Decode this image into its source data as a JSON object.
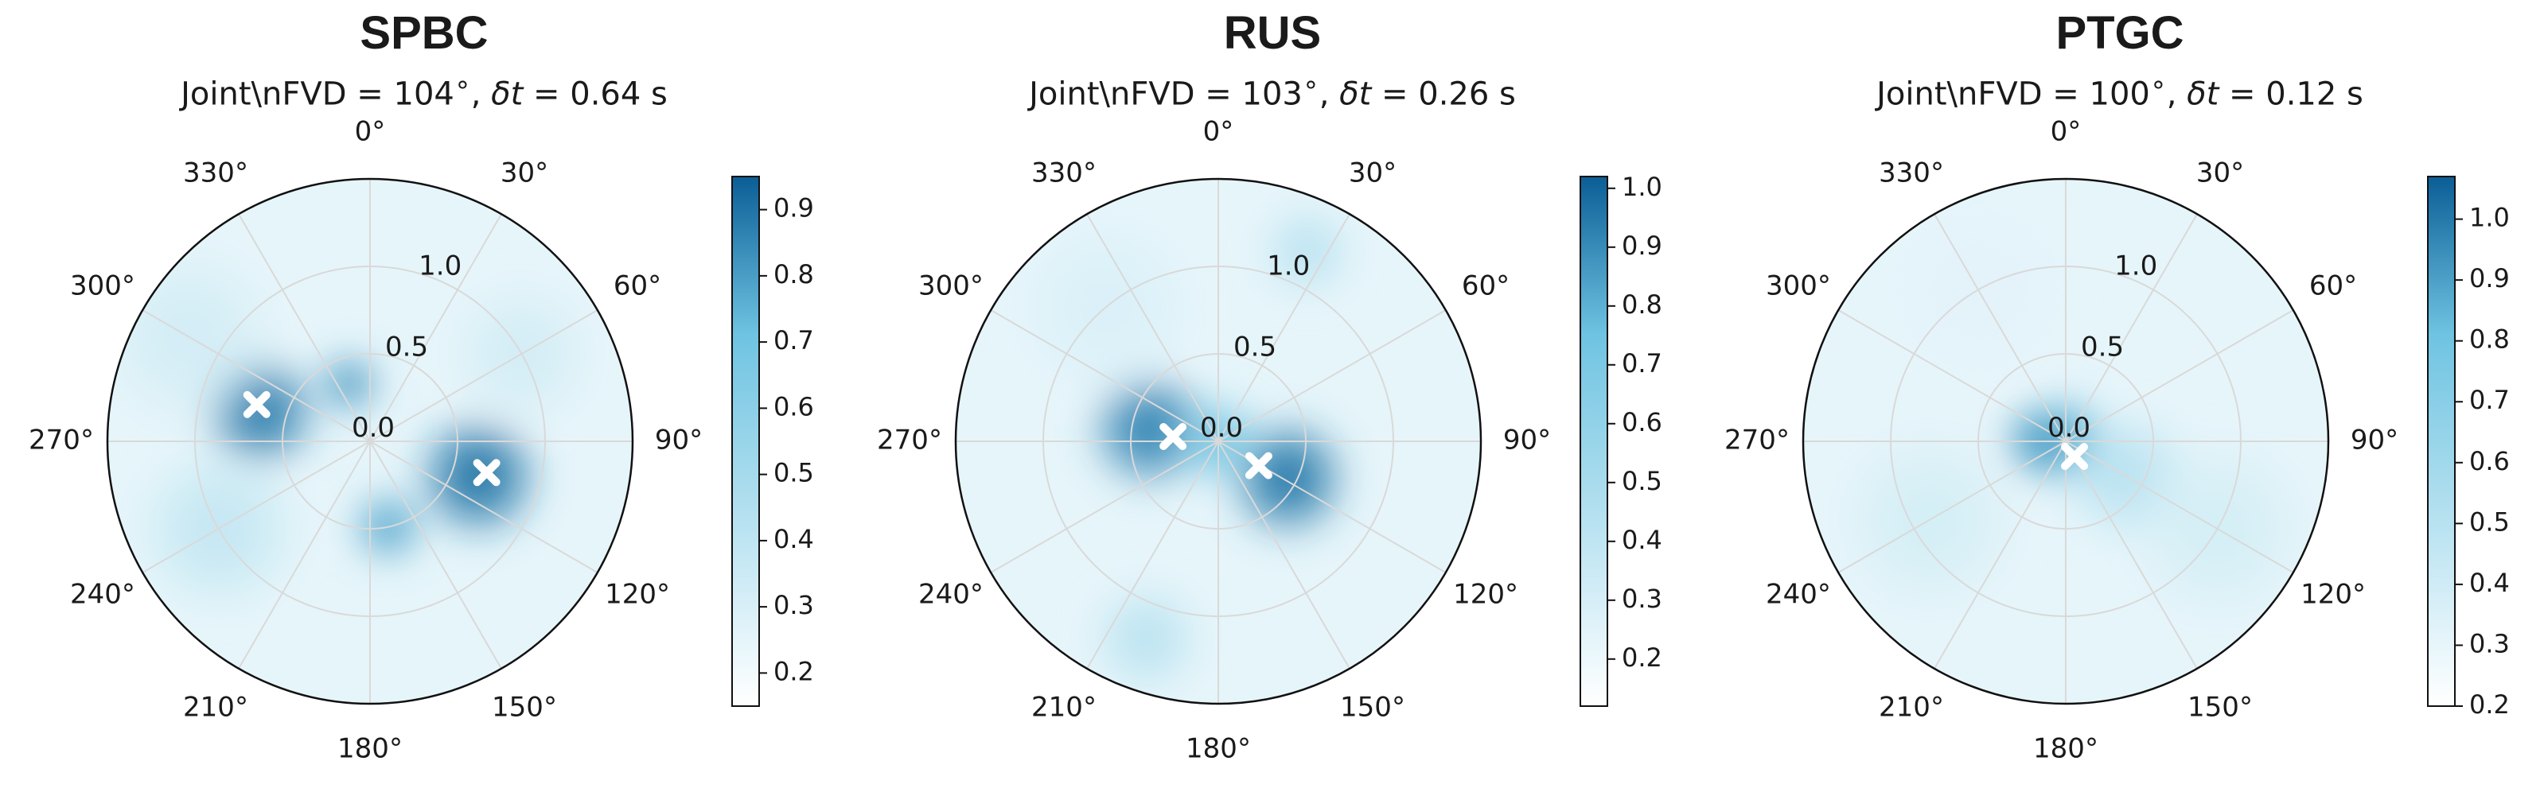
{
  "chart_data": [
    {
      "type": "heatmap",
      "subtype": "polar",
      "title": "SPBC",
      "subtitle": {
        "prefix": "Joint\\nFVD = 104",
        "deg": "∘",
        "mid": ", ",
        "var": "δt",
        "suffix": " = 0.64 s"
      },
      "angle_ticks": [
        "0°",
        "30°",
        "60°",
        "90°",
        "120°",
        "150°",
        "180°",
        "210°",
        "240°",
        "270°",
        "300°",
        "330°"
      ],
      "radial_ticks": [
        "0.0",
        "0.5",
        "1.0"
      ],
      "rlim": [
        0,
        1.5
      ],
      "grid": true,
      "colorbar": {
        "ticks": [
          "0.2",
          "0.3",
          "0.4",
          "0.5",
          "0.6",
          "0.7",
          "0.8",
          "0.9"
        ],
        "range": [
          0.15,
          0.95
        ]
      },
      "colormap": {
        "low": "#ffffff",
        "high": "#0b5e96"
      },
      "markers": [
        {
          "theta": 288,
          "r": 0.68
        },
        {
          "theta": 105,
          "r": 0.69
        }
      ],
      "blobs": [
        {
          "theta": 285,
          "r": 0.65,
          "spread": 0.32,
          "v": 0.88
        },
        {
          "theta": 108,
          "r": 0.65,
          "spread": 0.34,
          "v": 0.9
        },
        {
          "theta": 340,
          "r": 0.35,
          "spread": 0.17,
          "v": 0.82
        },
        {
          "theta": 168,
          "r": 0.5,
          "spread": 0.2,
          "v": 0.78
        },
        {
          "theta": 60,
          "r": 1.0,
          "spread": 0.4,
          "v": 0.32
        },
        {
          "theta": 240,
          "r": 1.0,
          "spread": 0.45,
          "v": 0.38
        },
        {
          "theta": 300,
          "r": 1.2,
          "spread": 0.5,
          "v": 0.32
        }
      ]
    },
    {
      "type": "heatmap",
      "subtype": "polar",
      "title": "RUS",
      "subtitle": {
        "prefix": "Joint\\nFVD = 103",
        "deg": "∘",
        "mid": ", ",
        "var": "δt",
        "suffix": " = 0.26 s"
      },
      "angle_ticks": [
        "0°",
        "30°",
        "60°",
        "90°",
        "120°",
        "150°",
        "180°",
        "210°",
        "240°",
        "270°",
        "300°",
        "330°"
      ],
      "radial_ticks": [
        "0.0",
        "0.5",
        "1.0"
      ],
      "rlim": [
        0,
        1.5
      ],
      "grid": true,
      "colorbar": {
        "ticks": [
          "0.2",
          "0.3",
          "0.4",
          "0.5",
          "0.6",
          "0.7",
          "0.8",
          "0.9",
          "1.0"
        ],
        "range": [
          0.12,
          1.02
        ]
      },
      "colormap": {
        "low": "#ffffff",
        "high": "#0b5e96"
      },
      "markers": [
        {
          "theta": 276,
          "r": 0.26
        },
        {
          "theta": 121,
          "r": 0.27
        }
      ],
      "blobs": [
        {
          "theta": 280,
          "r": 0.4,
          "spread": 0.33,
          "v": 0.92
        },
        {
          "theta": 118,
          "r": 0.45,
          "spread": 0.33,
          "v": 0.95
        },
        {
          "theta": 0,
          "r": 0.0,
          "spread": 0.25,
          "v": 0.7
        },
        {
          "theta": 25,
          "r": 1.2,
          "spread": 0.25,
          "v": 0.42
        },
        {
          "theta": 200,
          "r": 1.2,
          "spread": 0.3,
          "v": 0.42
        },
        {
          "theta": 320,
          "r": 1.0,
          "spread": 0.5,
          "v": 0.28
        }
      ]
    },
    {
      "type": "heatmap",
      "subtype": "polar",
      "title": "PTGC",
      "subtitle": {
        "prefix": "Joint\\nFVD = 100",
        "deg": "∘",
        "mid": ", ",
        "var": "δt",
        "suffix": " = 0.12 s"
      },
      "angle_ticks": [
        "0°",
        "30°",
        "60°",
        "90°",
        "120°",
        "150°",
        "180°",
        "210°",
        "240°",
        "270°",
        "300°",
        "330°"
      ],
      "radial_ticks": [
        "0.0",
        "0.5",
        "1.0"
      ],
      "rlim": [
        0,
        1.5
      ],
      "grid": true,
      "colorbar": {
        "ticks": [
          "0.2",
          "0.3",
          "0.4",
          "0.5",
          "0.6",
          "0.7",
          "0.8",
          "0.9",
          "1.0"
        ],
        "range": [
          0.2,
          1.07
        ]
      },
      "colormap": {
        "low": "#ffffff",
        "high": "#0b5e96"
      },
      "markers": [
        {
          "theta": 150,
          "r": 0.1
        }
      ],
      "blobs": [
        {
          "theta": 0,
          "r": 0.0,
          "spread": 0.25,
          "v": 0.85
        },
        {
          "theta": 270,
          "r": 0.15,
          "spread": 0.2,
          "v": 0.92
        },
        {
          "theta": 120,
          "r": 0.4,
          "spread": 0.35,
          "v": 0.5
        },
        {
          "theta": 240,
          "r": 0.9,
          "spread": 0.5,
          "v": 0.38
        },
        {
          "theta": 120,
          "r": 1.0,
          "spread": 0.5,
          "v": 0.38
        },
        {
          "theta": 330,
          "r": 1.0,
          "spread": 0.5,
          "v": 0.32
        }
      ]
    }
  ]
}
